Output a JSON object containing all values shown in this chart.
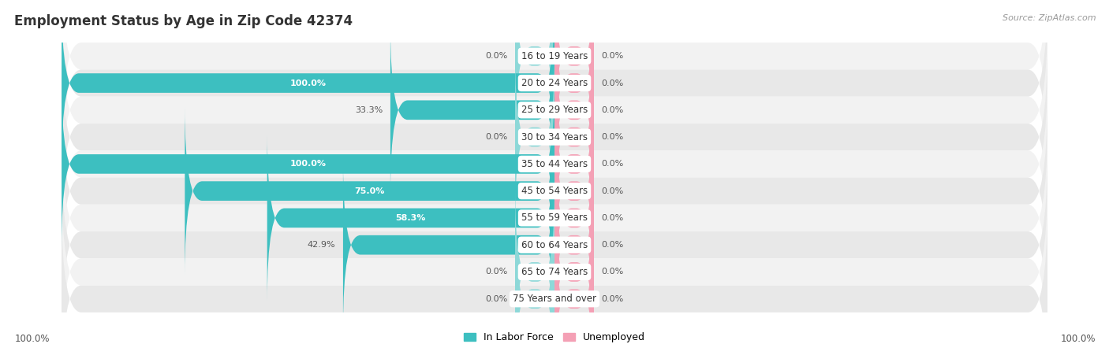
{
  "title": "Employment Status by Age in Zip Code 42374",
  "source": "Source: ZipAtlas.com",
  "categories": [
    "16 to 19 Years",
    "20 to 24 Years",
    "25 to 29 Years",
    "30 to 34 Years",
    "35 to 44 Years",
    "45 to 54 Years",
    "55 to 59 Years",
    "60 to 64 Years",
    "65 to 74 Years",
    "75 Years and over"
  ],
  "labor_force": [
    0.0,
    100.0,
    33.3,
    0.0,
    100.0,
    75.0,
    58.3,
    42.9,
    0.0,
    0.0
  ],
  "unemployed": [
    0.0,
    0.0,
    0.0,
    0.0,
    0.0,
    0.0,
    0.0,
    0.0,
    0.0,
    0.0
  ],
  "labor_force_color": "#3dbfc0",
  "labor_force_color_light": "#8dd8d8",
  "unemployed_color": "#f4a0b5",
  "row_colors": [
    "#f2f2f2",
    "#e8e8e8"
  ],
  "title_color": "#333333",
  "source_color": "#999999",
  "text_color": "#555555",
  "white_label_color": "#ffffff",
  "center_bg": "#ffffff",
  "min_bar": 8.0,
  "max_value": 100.0,
  "axis_label_left": "100.0%",
  "axis_label_right": "100.0%",
  "legend_lf": "In Labor Force",
  "legend_un": "Unemployed",
  "fig_width": 14.06,
  "fig_height": 4.51
}
